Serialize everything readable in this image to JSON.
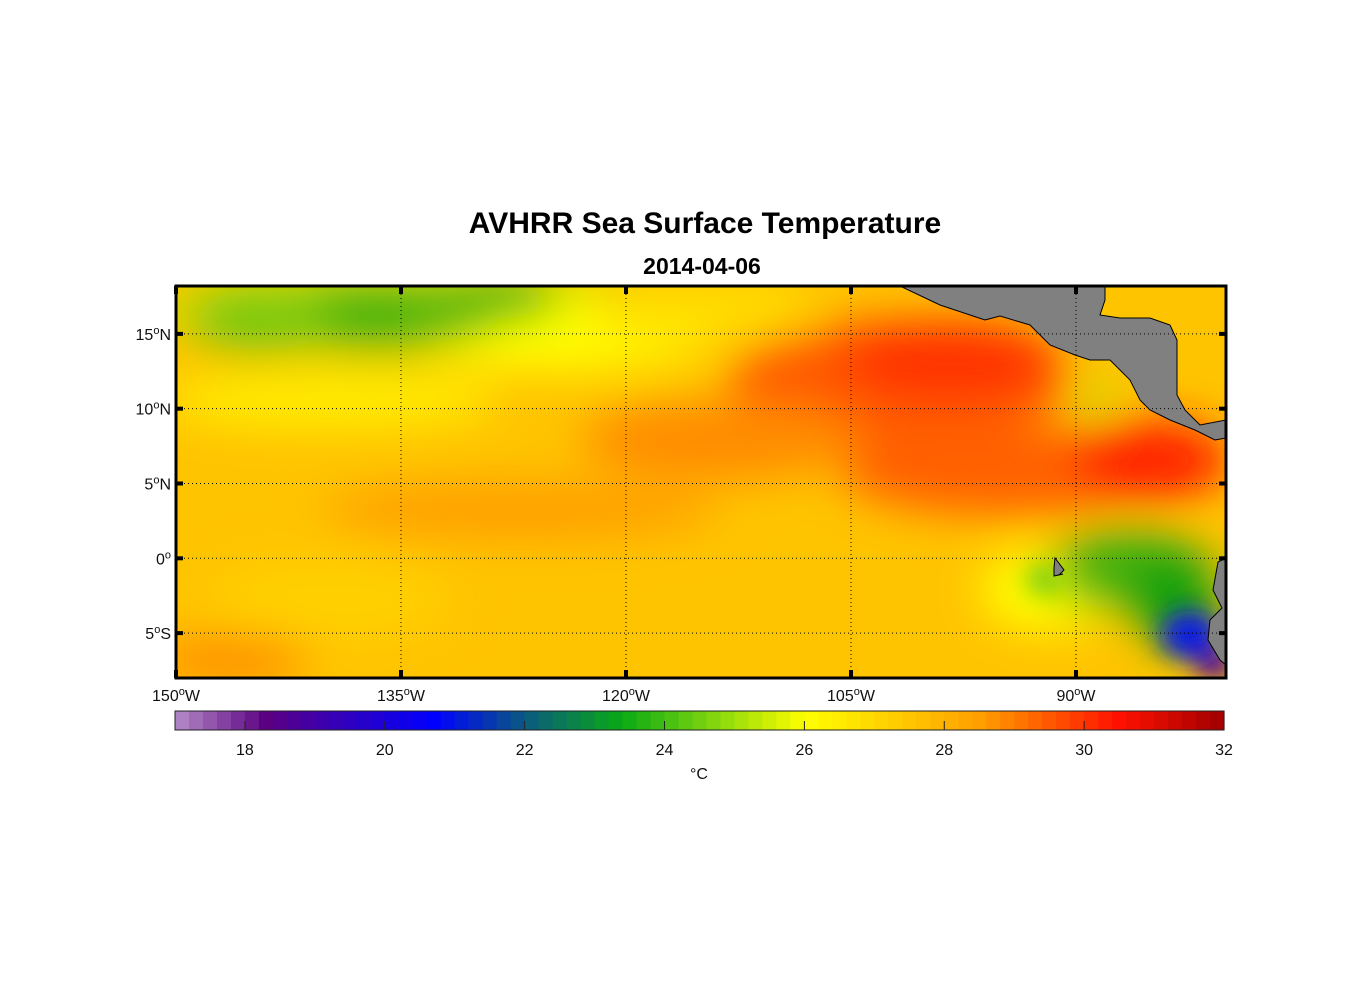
{
  "title": "AVHRR Sea Surface Temperature",
  "subtitle": "2014-04-06",
  "map": {
    "lon_range": [
      -150,
      -80
    ],
    "lat_range": [
      -8.0,
      18.2
    ],
    "land_color": "#808080",
    "lat_labels": [
      {
        "lat": 15,
        "num": "15",
        "hemi": "N"
      },
      {
        "lat": 10,
        "num": "10",
        "hemi": "N"
      },
      {
        "lat": 5,
        "num": "5",
        "hemi": "N"
      },
      {
        "lat": 0,
        "num": "0",
        "hemi": ""
      },
      {
        "lat": -5,
        "num": "5",
        "hemi": "S"
      }
    ],
    "lon_labels": [
      {
        "lon": -150,
        "num": "150",
        "hemi": "W"
      },
      {
        "lon": -135,
        "num": "135",
        "hemi": "W"
      },
      {
        "lon": -120,
        "num": "120",
        "hemi": "W"
      },
      {
        "lon": -105,
        "num": "105",
        "hemi": "W"
      },
      {
        "lon": -90,
        "num": "90",
        "hemi": "W"
      }
    ]
  },
  "colorbar": {
    "range": [
      17,
      32
    ],
    "ticks": [
      "18",
      "20",
      "22",
      "24",
      "26",
      "28",
      "30",
      "32"
    ],
    "unit": "°C",
    "colormap": [
      [
        17,
        "#b48cc8"
      ],
      [
        18.3,
        "#5c0082"
      ],
      [
        20.7,
        "#0000ff"
      ],
      [
        22,
        "#0a5a80"
      ],
      [
        23.4,
        "#0aaa14"
      ],
      [
        24.5,
        "#70d010"
      ],
      [
        26,
        "#ffff00"
      ],
      [
        27,
        "#ffd800"
      ],
      [
        28.5,
        "#ffa000"
      ],
      [
        30.5,
        "#ff1000"
      ],
      [
        32,
        "#a00000"
      ]
    ]
  }
}
